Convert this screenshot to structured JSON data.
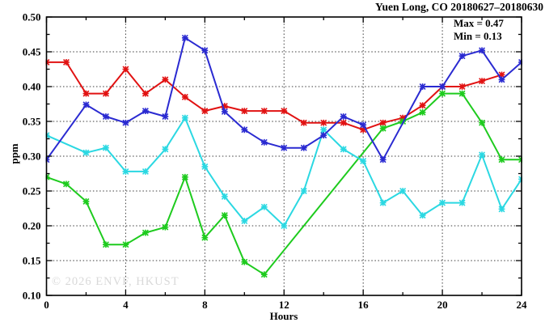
{
  "title": "Yuen Long, CO 20180627–20180630",
  "legend": {
    "max_label": "Max = 0.47",
    "min_label": "Min = 0.13"
  },
  "watermark": "© 2026 ENVF, HKUST",
  "chart_data": {
    "type": "line",
    "title": "Yuen Long, CO 20180627–20180630",
    "xlabel": "Hours",
    "ylabel": "ppm",
    "xlim": [
      0,
      24
    ],
    "ylim": [
      0.1,
      0.5
    ],
    "x_major_ticks": [
      0,
      4,
      8,
      12,
      16,
      20,
      24
    ],
    "x_minor_ticks": [
      2,
      6,
      10,
      14,
      18,
      22
    ],
    "y_major_ticks": [
      0.1,
      0.15,
      0.2,
      0.25,
      0.3,
      0.35,
      0.4,
      0.45,
      0.5
    ],
    "y_minor_ticks": [
      0.125,
      0.175,
      0.225,
      0.275,
      0.325,
      0.375,
      0.425,
      0.475
    ],
    "x_grid": [
      4,
      8,
      12,
      16,
      20
    ],
    "y_grid": [
      0.15,
      0.2,
      0.25,
      0.3,
      0.35,
      0.4,
      0.45
    ],
    "grid": true,
    "legend_position": "top-right-inside-text",
    "marker": "asterisk",
    "stats": {
      "max": 0.47,
      "min": 0.13
    },
    "series": [
      {
        "name": "series-red",
        "color": "#e11212",
        "points": [
          [
            0,
            0.435
          ],
          [
            1,
            0.435
          ],
          [
            2,
            0.39
          ],
          [
            3,
            0.39
          ],
          [
            4,
            0.425
          ],
          [
            5,
            0.39
          ],
          [
            6,
            0.41
          ],
          [
            7,
            0.385
          ],
          [
            8,
            0.365
          ],
          [
            9,
            0.372
          ],
          [
            10,
            0.365
          ],
          [
            11,
            0.365
          ],
          [
            12,
            0.365
          ],
          [
            13,
            0.348
          ],
          [
            14,
            0.348
          ],
          [
            15,
            0.348
          ],
          [
            16,
            0.338
          ],
          [
            17,
            0.348
          ],
          [
            18,
            0.355
          ],
          [
            19,
            0.373
          ],
          [
            20,
            0.4
          ],
          [
            21,
            0.4
          ],
          [
            22,
            0.408
          ],
          [
            23,
            0.417
          ]
        ]
      },
      {
        "name": "series-green",
        "color": "#1ecb1e",
        "points": [
          [
            0,
            0.27
          ],
          [
            1,
            0.26
          ],
          [
            2,
            0.235
          ],
          [
            3,
            0.173
          ],
          [
            4,
            0.173
          ],
          [
            5,
            0.19
          ],
          [
            6,
            0.198
          ],
          [
            7,
            0.27
          ],
          [
            8,
            0.183
          ],
          [
            9,
            0.215
          ],
          [
            10,
            0.148
          ],
          [
            11,
            0.13
          ],
          [
            17,
            0.34
          ],
          [
            18,
            0.35
          ],
          [
            19,
            0.363
          ],
          [
            20,
            0.39
          ],
          [
            21,
            0.39
          ],
          [
            22,
            0.348
          ],
          [
            23,
            0.295
          ],
          [
            24,
            0.295
          ]
        ]
      },
      {
        "name": "series-cyan",
        "color": "#2bd8e2",
        "points": [
          [
            0,
            0.33
          ],
          [
            2,
            0.305
          ],
          [
            3,
            0.312
          ],
          [
            4,
            0.278
          ],
          [
            5,
            0.278
          ],
          [
            6,
            0.31
          ],
          [
            7,
            0.355
          ],
          [
            8,
            0.285
          ],
          [
            9,
            0.242
          ],
          [
            10,
            0.207
          ],
          [
            11,
            0.227
          ],
          [
            12,
            0.2
          ],
          [
            13,
            0.25
          ],
          [
            14,
            0.338
          ],
          [
            15,
            0.31
          ],
          [
            16,
            0.293
          ],
          [
            17,
            0.233
          ],
          [
            18,
            0.25
          ],
          [
            19,
            0.215
          ],
          [
            20,
            0.233
          ],
          [
            21,
            0.233
          ],
          [
            22,
            0.302
          ],
          [
            23,
            0.224
          ],
          [
            24,
            0.267
          ]
        ]
      },
      {
        "name": "series-blue",
        "color": "#2a2ad1",
        "points": [
          [
            0,
            0.295
          ],
          [
            2,
            0.374
          ],
          [
            3,
            0.357
          ],
          [
            4,
            0.348
          ],
          [
            5,
            0.365
          ],
          [
            6,
            0.357
          ],
          [
            7,
            0.47
          ],
          [
            8,
            0.452
          ],
          [
            9,
            0.364
          ],
          [
            10,
            0.338
          ],
          [
            11,
            0.32
          ],
          [
            12,
            0.312
          ],
          [
            13,
            0.312
          ],
          [
            14,
            0.33
          ],
          [
            15,
            0.357
          ],
          [
            16,
            0.345
          ],
          [
            17,
            0.295
          ],
          [
            19,
            0.4
          ],
          [
            20,
            0.4
          ],
          [
            21,
            0.444
          ],
          [
            22,
            0.452
          ],
          [
            23,
            0.41
          ],
          [
            24,
            0.435
          ]
        ]
      }
    ]
  }
}
